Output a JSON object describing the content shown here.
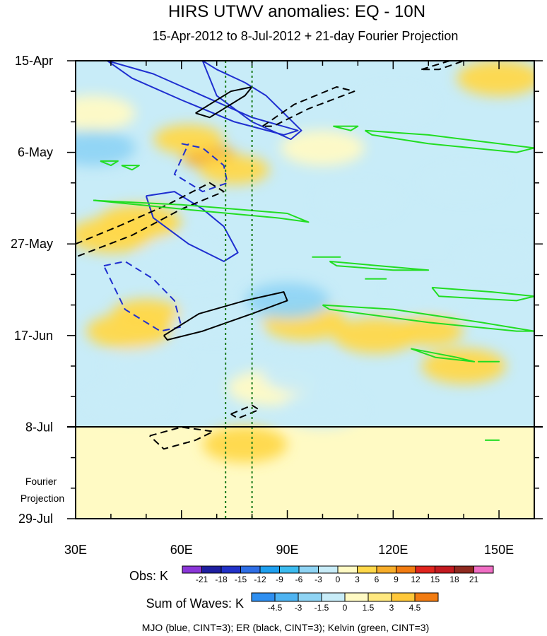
{
  "chart_data": {
    "type": "heatmap",
    "title": "HIRS UTWV anomalies: EQ - 10N",
    "subtitle": "15-Apr-2012 to 8-Jul-2012 + 21-day Fourier Projection",
    "xlabel": "",
    "ylabel": "",
    "x_ticks": [
      "30E",
      "60E",
      "90E",
      "120E",
      "150E"
    ],
    "x_tick_values": [
      30,
      60,
      90,
      120,
      150
    ],
    "xlim": [
      30,
      160
    ],
    "y_ticks": [
      "15-Apr",
      "6-May",
      "27-May",
      "17-Jun",
      "8-Jul",
      "29-Jul"
    ],
    "y_tick_values": [
      0,
      21,
      42,
      63,
      84,
      105
    ],
    "ylim": [
      0,
      105
    ],
    "y_reversed": true,
    "projection_label": "Fourier Projection",
    "projection_start_day": 84,
    "reference_longitudes_dotted": [
      72.5,
      80
    ],
    "grid": false,
    "anomaly_patches": [
      {
        "lon": 68,
        "day": 22,
        "value": 6.5
      },
      {
        "lon": 62,
        "day": 18,
        "value": 4.5
      },
      {
        "lon": 75,
        "day": 25,
        "value": 4
      },
      {
        "lon": 48,
        "day": 37,
        "value": 3.5
      },
      {
        "lon": 40,
        "day": 40,
        "value": 3
      },
      {
        "lon": 50,
        "day": 58,
        "value": 4
      },
      {
        "lon": 45,
        "day": 62,
        "value": 3
      },
      {
        "lon": 95,
        "day": 60,
        "value": 3.5
      },
      {
        "lon": 130,
        "day": 62,
        "value": 4
      },
      {
        "lon": 115,
        "day": 63,
        "value": 3
      },
      {
        "lon": 140,
        "day": 70,
        "value": 3
      },
      {
        "lon": 85,
        "day": 75,
        "value": 2.5
      },
      {
        "lon": 150,
        "day": 4,
        "value": 3
      },
      {
        "lon": 100,
        "day": 20,
        "value": 2.5
      },
      {
        "lon": 78,
        "day": 88,
        "value": 3
      },
      {
        "lon": 35,
        "day": 12,
        "value": 2
      },
      {
        "lon": 50,
        "day": 70,
        "value": -3
      },
      {
        "lon": 90,
        "day": 55,
        "value": -3.5
      },
      {
        "lon": 70,
        "day": 60,
        "value": -3
      },
      {
        "lon": 110,
        "day": 32,
        "value": -3
      },
      {
        "lon": 140,
        "day": 28,
        "value": -3
      },
      {
        "lon": 35,
        "day": 20,
        "value": -3.5
      },
      {
        "lon": 45,
        "day": 78,
        "value": -3
      },
      {
        "lon": 95,
        "day": 72,
        "value": -2.5
      },
      {
        "lon": 130,
        "day": 52,
        "value": -2.5
      },
      {
        "lon": 60,
        "day": 45,
        "value": -2.5
      },
      {
        "lon": 150,
        "day": 45,
        "value": -2.5
      },
      {
        "lon": 120,
        "day": 10,
        "value": -2
      },
      {
        "lon": 100,
        "day": 80,
        "value": -2.5
      }
    ],
    "wave_contours": [
      {
        "wave": "MJO",
        "color": "#1f2fd0",
        "dashed": false,
        "lon": [
          39,
          52,
          66,
          80,
          93,
          89,
          75,
          60,
          46,
          39
        ],
        "day": [
          0,
          3,
          8,
          13,
          16,
          17,
          14,
          9,
          4,
          0
        ]
      },
      {
        "wave": "MJO",
        "color": "#1f2fd0",
        "dashed": false,
        "lon": [
          66,
          70,
          78,
          84,
          94,
          91,
          80,
          70,
          66
        ],
        "day": [
          0,
          2,
          5,
          8,
          16,
          18,
          14,
          8,
          0
        ]
      },
      {
        "wave": "MJO",
        "color": "#1f2fd0",
        "dashed": false,
        "lon": [
          50,
          58,
          66,
          72,
          76,
          72,
          62,
          52,
          50
        ],
        "day": [
          31,
          30,
          34,
          38,
          44,
          46,
          42,
          36,
          31
        ]
      },
      {
        "wave": "MJO",
        "color": "#1f2fd0",
        "dashed": true,
        "lon": [
          60,
          66,
          72,
          73,
          66,
          58,
          62
        ],
        "day": [
          19,
          20,
          24,
          28,
          30,
          26,
          19
        ]
      },
      {
        "wave": "MJO",
        "color": "#1f2fd0",
        "dashed": true,
        "lon": [
          38,
          44,
          52,
          58,
          60,
          54,
          44,
          38
        ],
        "day": [
          47,
          46,
          50,
          55,
          61,
          62,
          57,
          47
        ]
      },
      {
        "wave": "ER",
        "color": "#000000",
        "dashed": false,
        "lon": [
          64,
          74,
          80,
          78,
          68,
          64
        ],
        "day": [
          12,
          7,
          6,
          8,
          13,
          12
        ]
      },
      {
        "wave": "ER",
        "color": "#000000",
        "dashed": false,
        "lon": [
          55,
          65,
          78,
          89,
          90,
          80,
          66,
          56,
          55
        ],
        "day": [
          63,
          58,
          55,
          53,
          55,
          58,
          62,
          64,
          63
        ]
      },
      {
        "wave": "ER",
        "color": "#000000",
        "dashed": true,
        "lon": [
          83,
          92,
          104,
          109,
          96,
          86,
          83
        ],
        "day": [
          15,
          10,
          6,
          7,
          11,
          15,
          15
        ]
      },
      {
        "wave": "ER",
        "color": "#000000",
        "dashed": true,
        "lon": [
          30,
          42,
          56,
          68,
          72,
          60,
          46,
          30
        ],
        "day": [
          42,
          38,
          33,
          28,
          30,
          34,
          40,
          45
        ]
      },
      {
        "wave": "ER",
        "color": "#000000",
        "dashed": true,
        "lon": [
          128,
          136,
          140,
          133,
          128
        ],
        "day": [
          2,
          0,
          0,
          2,
          2
        ]
      },
      {
        "wave": "ER",
        "color": "#000000",
        "dashed": true,
        "lon": [
          51,
          60,
          69,
          64,
          55,
          51
        ],
        "day": [
          86,
          84,
          85,
          87,
          89,
          86
        ]
      },
      {
        "wave": "ER",
        "color": "#000000",
        "dashed": true,
        "lon": [
          74,
          80,
          82,
          76,
          74
        ],
        "day": [
          81,
          79,
          80,
          82,
          81
        ]
      },
      {
        "wave": "Kelvin",
        "color": "#22dd22",
        "dashed": false,
        "lon": [
          35,
          60,
          90,
          96,
          87,
          60,
          35
        ],
        "day": [
          32,
          33,
          35,
          37,
          36,
          34,
          32
        ]
      },
      {
        "wave": "Kelvin",
        "color": "#22dd22",
        "dashed": false,
        "lon": [
          112,
          130,
          150,
          160,
          155,
          130,
          114,
          112
        ],
        "day": [
          16,
          17,
          19,
          20,
          21,
          19,
          17,
          16
        ]
      },
      {
        "wave": "Kelvin",
        "color": "#22dd22",
        "dashed": false,
        "lon": [
          100,
          120,
          145,
          160,
          155,
          130,
          102,
          100
        ],
        "day": [
          56,
          57,
          60,
          62,
          62,
          60,
          57,
          56
        ]
      },
      {
        "wave": "Kelvin",
        "color": "#22dd22",
        "dashed": false,
        "lon": [
          131,
          148,
          160,
          155,
          133,
          131
        ],
        "day": [
          52,
          53,
          54,
          55,
          54,
          52
        ]
      },
      {
        "wave": "Kelvin",
        "color": "#22dd22",
        "dashed": false,
        "lon": [
          102,
          116,
          130,
          120,
          104,
          102
        ],
        "day": [
          46,
          47,
          48,
          48,
          47,
          46
        ]
      },
      {
        "wave": "Kelvin",
        "color": "#22dd22",
        "dashed": false,
        "lon": [
          125,
          138,
          143,
          132,
          125
        ],
        "day": [
          66,
          68,
          69,
          68,
          66
        ]
      },
      {
        "wave": "Kelvin",
        "color": "#22dd22",
        "dashed": false,
        "lon": [
          37,
          42,
          40,
          37
        ],
        "day": [
          23,
          23,
          24,
          23
        ]
      },
      {
        "wave": "Kelvin",
        "color": "#22dd22",
        "dashed": false,
        "lon": [
          43,
          48,
          46,
          43
        ],
        "day": [
          24,
          24,
          25,
          24
        ]
      },
      {
        "wave": "Kelvin",
        "color": "#22dd22",
        "dashed": false,
        "lon": [
          103,
          110,
          108,
          103
        ],
        "day": [
          15,
          15,
          16,
          15
        ]
      },
      {
        "wave": "Kelvin",
        "color": "#22dd22",
        "dashed": false,
        "lon": [
          97,
          105,
          103,
          97
        ],
        "day": [
          45,
          45,
          45,
          45
        ]
      },
      {
        "wave": "Kelvin",
        "color": "#22dd22",
        "dashed": false,
        "lon": [
          144,
          150,
          148,
          144
        ],
        "day": [
          69,
          69,
          69,
          69
        ]
      },
      {
        "wave": "Kelvin",
        "color": "#22dd22",
        "dashed": false,
        "lon": [
          146,
          150,
          149,
          146
        ],
        "day": [
          87,
          87,
          87,
          87
        ]
      },
      {
        "wave": "Kelvin",
        "color": "#22dd22",
        "dashed": false,
        "lon": [
          112,
          118,
          116,
          112
        ],
        "day": [
          50,
          50,
          50,
          50
        ]
      }
    ],
    "obs_colorbar": {
      "label": "Obs: K",
      "levels": [
        "-21",
        "-18",
        "-15",
        "-12",
        "-9",
        "-6",
        "-3",
        "0",
        "3",
        "6",
        "9",
        "12",
        "15",
        "18",
        "21"
      ],
      "colors": [
        "#8b36d8",
        "#1f1fa0",
        "#2232c8",
        "#2f6fe6",
        "#1fa0f0",
        "#3cbcf0",
        "#8fd4f4",
        "#c8ecf8",
        "#fffac4",
        "#ffd84a",
        "#f7ad2a",
        "#f27c12",
        "#e0251e",
        "#c31a20",
        "#8f2a20",
        "#f06ec4"
      ]
    },
    "waves_colorbar": {
      "label": "Sum of Waves: K",
      "levels": [
        "-4.5",
        "-3",
        "-1.5",
        "0",
        "1.5",
        "3",
        "4.5"
      ],
      "colors": [
        "#2f8ff0",
        "#4fb4f2",
        "#8fd4f4",
        "#c8ecf8",
        "#fffac4",
        "#ffe880",
        "#ffc83a",
        "#f27c12"
      ]
    },
    "footnote": "MJO (blue, CINT=3); ER (black, CINT=3); Kelvin (green, CINT=3)"
  }
}
